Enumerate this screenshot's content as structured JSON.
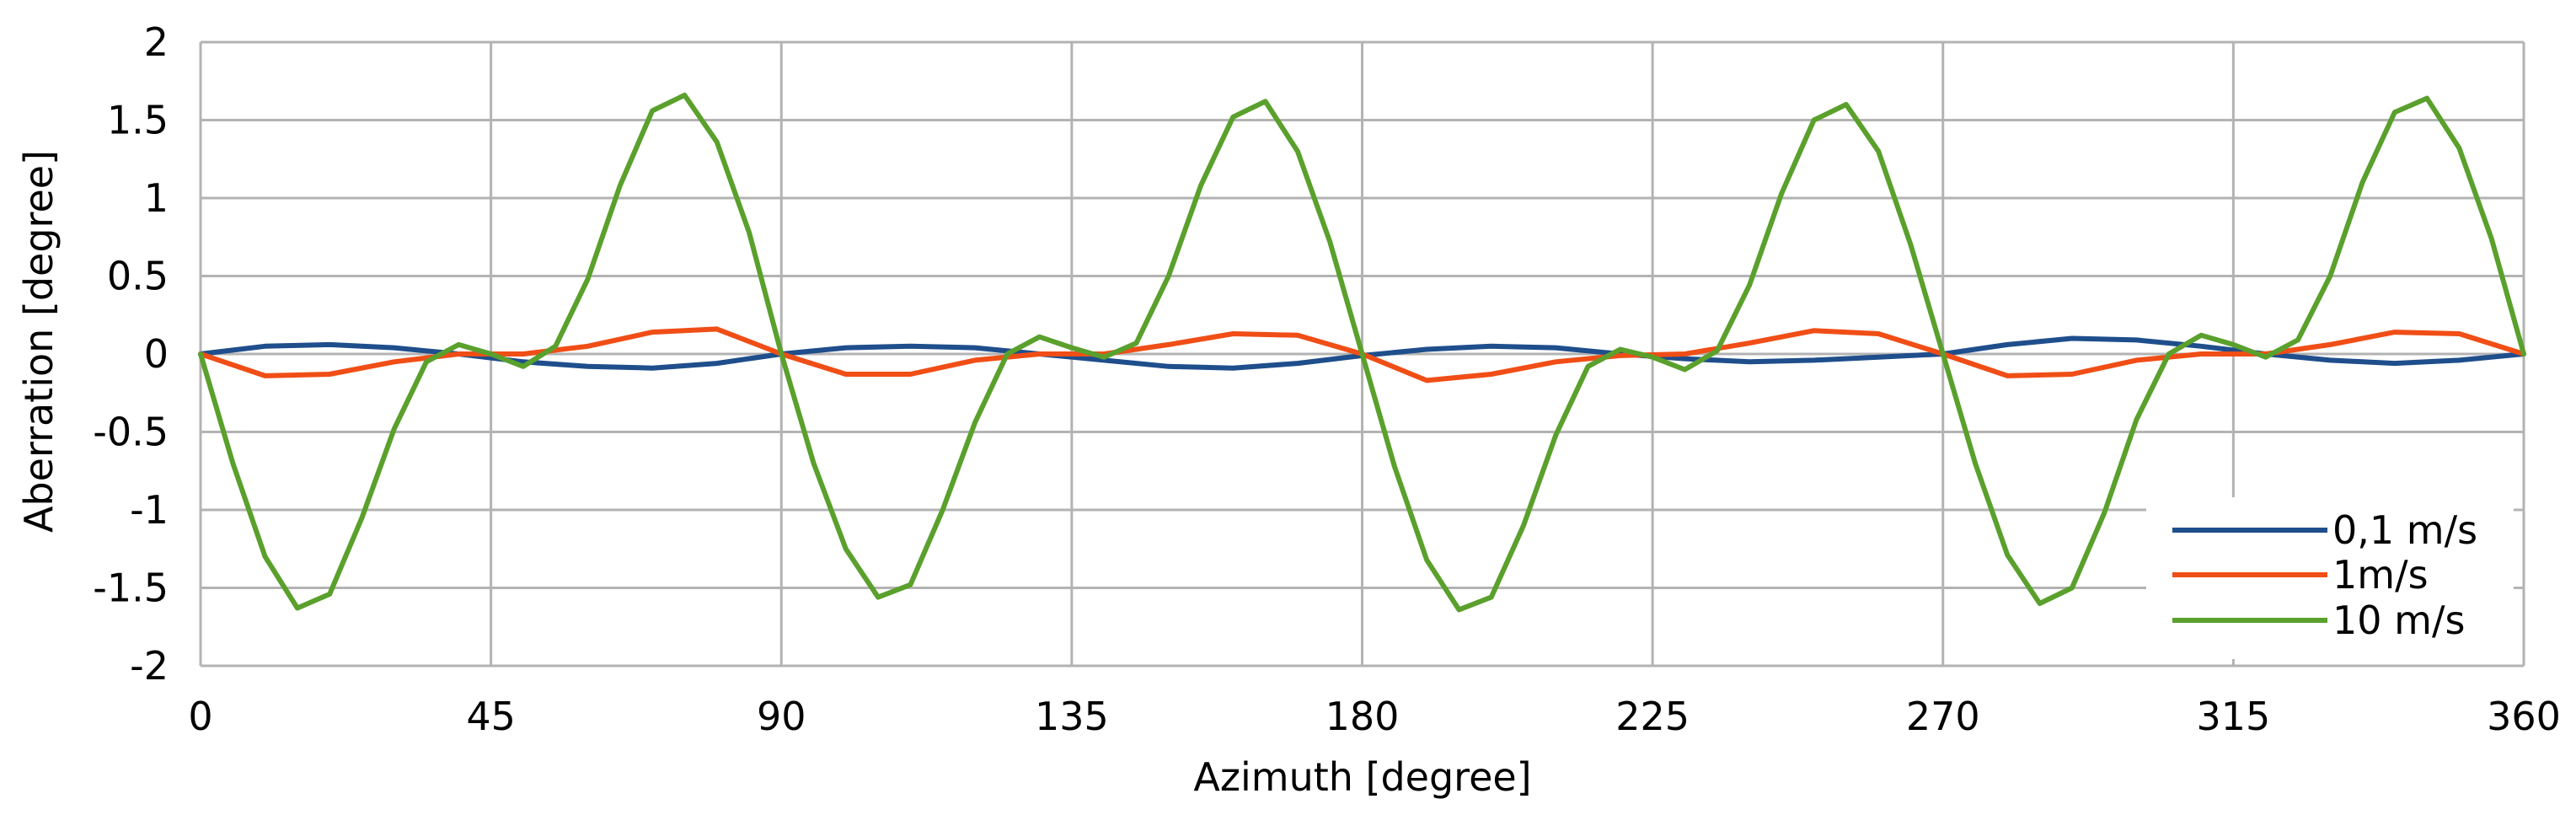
{
  "chart_data": {
    "type": "line",
    "title": "",
    "xlabel": "Azimuth [degree]",
    "ylabel": "Aberration [degree]",
    "xlim": [
      0,
      360
    ],
    "ylim": [
      -2,
      2
    ],
    "x_ticks": [
      0,
      45,
      90,
      135,
      180,
      225,
      270,
      315,
      360
    ],
    "x_tick_labels": [
      "0",
      "45",
      "90",
      "135",
      "180",
      "225",
      "270",
      "315",
      "360"
    ],
    "y_ticks": [
      2,
      1.5,
      1,
      0.5,
      0,
      -0.5,
      -1,
      -1.5,
      -2
    ],
    "y_tick_labels": [
      "2",
      "1.5",
      "1",
      "0.5",
      "0",
      "-0.5",
      "-1",
      "-1.5",
      "-2"
    ],
    "grid": true,
    "legend_position": "bottom-right",
    "series": [
      {
        "name": "0,1 m/s",
        "color": "#1f4e8c",
        "x": [
          0,
          10,
          20,
          30,
          40,
          50,
          60,
          70,
          80,
          90,
          100,
          110,
          120,
          130,
          140,
          150,
          160,
          170,
          180,
          190,
          200,
          210,
          220,
          230,
          240,
          250,
          260,
          270,
          280,
          290,
          300,
          310,
          320,
          330,
          340,
          350,
          360
        ],
        "y": [
          0,
          0.05,
          0.06,
          0.04,
          0.0,
          -0.05,
          -0.08,
          -0.09,
          -0.06,
          0.0,
          0.04,
          0.05,
          0.04,
          0.0,
          -0.04,
          -0.08,
          -0.09,
          -0.06,
          -0.01,
          0.03,
          0.05,
          0.04,
          0.0,
          -0.03,
          -0.05,
          -0.04,
          -0.02,
          0.0,
          0.06,
          0.1,
          0.09,
          0.05,
          0.0,
          -0.04,
          -0.06,
          -0.04,
          0.0
        ]
      },
      {
        "name": "1m/s",
        "color": "#f04e16",
        "x": [
          0,
          10,
          20,
          30,
          40,
          50,
          60,
          70,
          80,
          90,
          100,
          110,
          120,
          130,
          140,
          150,
          160,
          170,
          180,
          190,
          200,
          210,
          220,
          230,
          240,
          250,
          260,
          270,
          280,
          290,
          300,
          310,
          320,
          330,
          340,
          350,
          360
        ],
        "y": [
          0,
          -0.14,
          -0.13,
          -0.05,
          0.0,
          0.0,
          0.05,
          0.14,
          0.16,
          0.0,
          -0.13,
          -0.13,
          -0.04,
          0.0,
          0.0,
          0.06,
          0.13,
          0.12,
          0.0,
          -0.17,
          -0.13,
          -0.05,
          -0.01,
          0.0,
          0.07,
          0.15,
          0.13,
          0.0,
          -0.14,
          -0.13,
          -0.04,
          0.0,
          0.0,
          0.06,
          0.14,
          0.13,
          0.0
        ]
      },
      {
        "name": "10 m/s",
        "color": "#5aa02c",
        "x": [
          0,
          5,
          10,
          15,
          20,
          25,
          30,
          35,
          40,
          45,
          50,
          55,
          60,
          65,
          70,
          75,
          80,
          85,
          90,
          95,
          100,
          105,
          110,
          115,
          120,
          125,
          130,
          135,
          140,
          145,
          150,
          155,
          160,
          165,
          170,
          175,
          180,
          185,
          190,
          195,
          200,
          205,
          210,
          215,
          220,
          225,
          230,
          235,
          240,
          245,
          250,
          255,
          260,
          265,
          270,
          275,
          280,
          285,
          290,
          295,
          300,
          305,
          310,
          315,
          320,
          325,
          330,
          335,
          340,
          345,
          350,
          355,
          360
        ],
        "y": [
          0,
          -0.7,
          -1.3,
          -1.63,
          -1.54,
          -1.05,
          -0.48,
          -0.05,
          0.06,
          0.0,
          -0.08,
          0.05,
          0.48,
          1.08,
          1.56,
          1.66,
          1.36,
          0.78,
          0.0,
          -0.7,
          -1.25,
          -1.56,
          -1.48,
          -1.0,
          -0.44,
          0.0,
          0.11,
          0.04,
          -0.02,
          0.07,
          0.5,
          1.08,
          1.52,
          1.62,
          1.3,
          0.72,
          0.0,
          -0.72,
          -1.32,
          -1.64,
          -1.56,
          -1.1,
          -0.52,
          -0.08,
          0.03,
          -0.02,
          -0.1,
          0.02,
          0.44,
          1.03,
          1.5,
          1.6,
          1.3,
          0.7,
          0.0,
          -0.7,
          -1.29,
          -1.6,
          -1.5,
          -1.02,
          -0.42,
          0.0,
          0.12,
          0.06,
          -0.02,
          0.09,
          0.5,
          1.1,
          1.55,
          1.64,
          1.32,
          0.74,
          0.0
        ]
      }
    ]
  }
}
